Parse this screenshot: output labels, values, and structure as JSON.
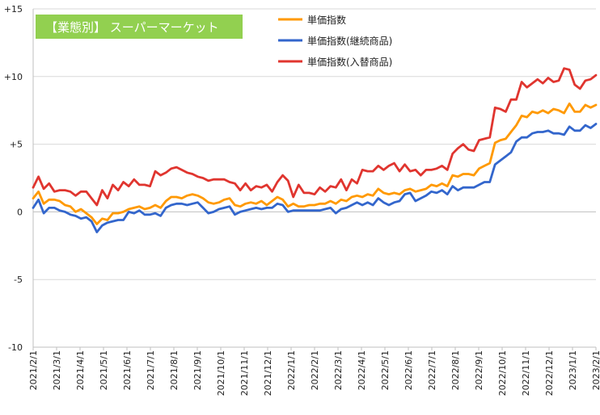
{
  "chart_data": {
    "type": "line",
    "title": "【業態別】 スーパーマーケット",
    "title_bg": "#92D050",
    "ylim": [
      -10,
      15
    ],
    "yticks": [
      -10,
      -5,
      0,
      5,
      10,
      15
    ],
    "ytick_labels": [
      "-10",
      "-5",
      "0",
      "+5",
      "+10",
      "+15"
    ],
    "xtick_labels": [
      "2021/2/1",
      "2021/3/1",
      "2021/4/1",
      "2021/5/1",
      "2021/6/1",
      "2021/7/1",
      "2021/8/1",
      "2021/9/1",
      "2021/10/1",
      "2021/11/1",
      "2021/12/1",
      "2022/1/1",
      "2022/2/1",
      "2022/3/1",
      "2022/4/1",
      "2022/5/1",
      "2022/6/1",
      "2022/7/1",
      "2022/8/1",
      "2022/9/1",
      "2022/10/1",
      "2022/11/1",
      "2022/12/1",
      "2023/1/1",
      "2023/2/1"
    ],
    "grid": "horizontal",
    "legend_position": "top-center",
    "series": [
      {
        "name": "単価指数",
        "color": "#FF9900",
        "values": [
          1.0,
          1.5,
          0.6,
          0.9,
          0.9,
          0.8,
          0.5,
          0.4,
          0.0,
          0.2,
          -0.1,
          -0.4,
          -0.9,
          -0.5,
          -0.6,
          -0.1,
          -0.1,
          0.0,
          0.2,
          0.3,
          0.4,
          0.2,
          0.3,
          0.5,
          0.3,
          0.8,
          1.1,
          1.1,
          1.0,
          1.2,
          1.3,
          1.2,
          1.0,
          0.7,
          0.6,
          0.7,
          0.9,
          1.0,
          0.5,
          0.4,
          0.6,
          0.7,
          0.6,
          0.8,
          0.5,
          0.8,
          1.1,
          0.9,
          0.4,
          0.6,
          0.4,
          0.4,
          0.5,
          0.5,
          0.6,
          0.6,
          0.8,
          0.6,
          0.9,
          0.8,
          1.1,
          1.2,
          1.1,
          1.3,
          1.2,
          1.7,
          1.4,
          1.3,
          1.4,
          1.3,
          1.6,
          1.7,
          1.5,
          1.6,
          1.7,
          2.0,
          1.9,
          2.1,
          1.9,
          2.7,
          2.6,
          2.8,
          2.8,
          2.7,
          3.2,
          3.4,
          3.6,
          5.1,
          5.3,
          5.4,
          5.9,
          6.4,
          7.1,
          7.0,
          7.4,
          7.3,
          7.5,
          7.3,
          7.6,
          7.5,
          7.3,
          8.0,
          7.4,
          7.4,
          7.9,
          7.7,
          7.9
        ]
      },
      {
        "name": "単価指数(継続商品)",
        "color": "#3366CC",
        "values": [
          0.3,
          0.9,
          -0.1,
          0.3,
          0.3,
          0.1,
          0.0,
          -0.2,
          -0.3,
          -0.5,
          -0.4,
          -0.7,
          -1.5,
          -1.0,
          -0.8,
          -0.7,
          -0.6,
          -0.6,
          0.0,
          -0.1,
          0.1,
          -0.2,
          -0.2,
          -0.1,
          -0.3,
          0.3,
          0.5,
          0.6,
          0.6,
          0.5,
          0.6,
          0.7,
          0.3,
          -0.1,
          0.0,
          0.2,
          0.3,
          0.4,
          -0.2,
          0.0,
          0.1,
          0.2,
          0.3,
          0.2,
          0.3,
          0.3,
          0.6,
          0.5,
          0.0,
          0.1,
          0.1,
          0.1,
          0.1,
          0.1,
          0.1,
          0.2,
          0.3,
          -0.1,
          0.2,
          0.3,
          0.5,
          0.7,
          0.5,
          0.7,
          0.5,
          1.0,
          0.7,
          0.5,
          0.7,
          0.8,
          1.3,
          1.4,
          0.8,
          1.0,
          1.2,
          1.5,
          1.4,
          1.6,
          1.3,
          1.9,
          1.6,
          1.8,
          1.8,
          1.8,
          2.0,
          2.2,
          2.2,
          3.5,
          3.8,
          4.1,
          4.4,
          5.2,
          5.5,
          5.5,
          5.8,
          5.9,
          5.9,
          6.0,
          5.8,
          5.8,
          5.7,
          6.3,
          6.0,
          6.0,
          6.4,
          6.2,
          6.5
        ]
      },
      {
        "name": "単価指数(入替商品)",
        "color": "#E0352F",
        "values": [
          1.8,
          2.6,
          1.7,
          2.1,
          1.5,
          1.6,
          1.6,
          1.5,
          1.2,
          1.5,
          1.5,
          1.0,
          0.5,
          1.6,
          1.0,
          2.0,
          1.6,
          2.2,
          1.9,
          2.4,
          2.0,
          2.0,
          1.9,
          3.0,
          2.7,
          2.9,
          3.2,
          3.3,
          3.1,
          2.9,
          2.8,
          2.6,
          2.5,
          2.3,
          2.4,
          2.4,
          2.4,
          2.2,
          2.1,
          1.6,
          2.1,
          1.6,
          1.9,
          1.8,
          2.0,
          1.5,
          2.2,
          2.7,
          2.3,
          1.1,
          2.0,
          1.4,
          1.4,
          1.3,
          1.8,
          1.5,
          1.9,
          1.8,
          2.4,
          1.6,
          2.4,
          2.1,
          3.1,
          3.0,
          3.0,
          3.4,
          3.1,
          3.4,
          3.6,
          3.0,
          3.5,
          3.0,
          3.1,
          2.7,
          3.1,
          3.1,
          3.2,
          3.4,
          3.1,
          4.3,
          4.7,
          5.0,
          4.6,
          4.5,
          5.3,
          5.4,
          5.5,
          7.7,
          7.6,
          7.4,
          8.3,
          8.3,
          9.6,
          9.2,
          9.5,
          9.8,
          9.5,
          9.9,
          9.6,
          9.7,
          10.6,
          10.5,
          9.4,
          9.1,
          9.7,
          9.8,
          10.1
        ]
      }
    ]
  }
}
